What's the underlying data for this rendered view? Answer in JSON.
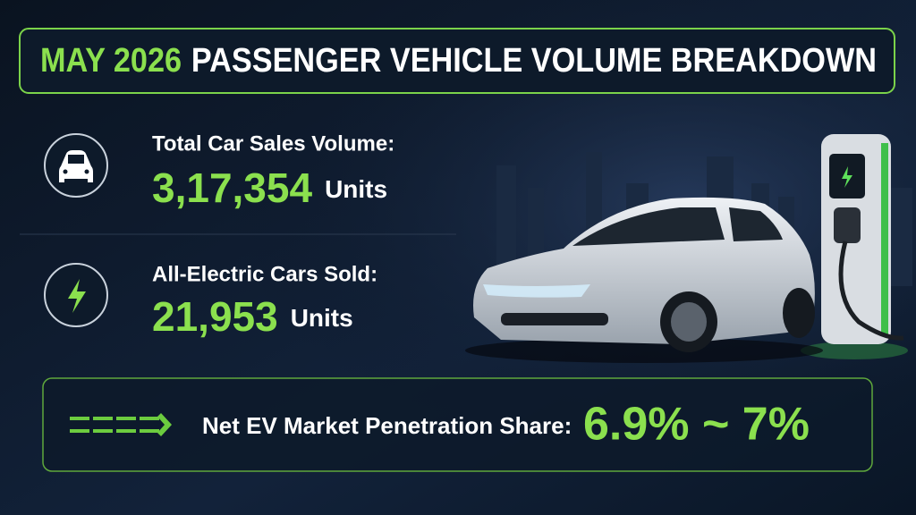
{
  "header": {
    "title_highlight": "MAY 2026",
    "title": "PASSENGER VEHICLE VOLUME BREAKDOWN"
  },
  "stats": [
    {
      "label": "Total Car Sales Volume:",
      "value": "3,17,354",
      "unit": "Units"
    },
    {
      "label": "All-Electric Cars Sold:",
      "value": "21,953",
      "unit": "Units"
    }
  ],
  "penetration": {
    "label": "Net EV Market Penetration Share:",
    "value": "6.9% ~ 7%"
  }
}
